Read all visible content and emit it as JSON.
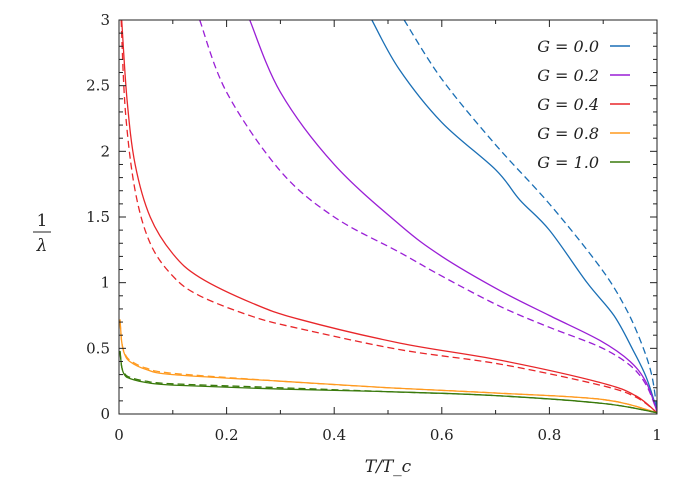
{
  "chart_data": {
    "type": "line",
    "xlabel": "T/T_c",
    "ylabel_numerator": "1",
    "ylabel_denominator": "λ",
    "xlim": [
      0,
      1
    ],
    "ylim": [
      0,
      3
    ],
    "xticks": [
      "0",
      "0.2",
      "0.4",
      "0.6",
      "0.8",
      "1"
    ],
    "yticks": [
      "0",
      "0.5",
      "1",
      "1.5",
      "2",
      "2.5",
      "3"
    ],
    "grid": false,
    "legend_position": "top-right",
    "series": [
      {
        "name": "G = 0.0",
        "color": "#1a6fb5",
        "style": "solid",
        "x": [
          0.47,
          0.52,
          0.6,
          0.7,
          0.745,
          0.8,
          0.87,
          0.92,
          0.955,
          0.98,
          1.0
        ],
        "y": [
          3.0,
          2.63,
          2.22,
          1.86,
          1.63,
          1.4,
          1.0,
          0.75,
          0.49,
          0.28,
          0.03
        ]
      },
      {
        "name": "",
        "color": "#1a6fb5",
        "style": "dashed",
        "x": [
          0.53,
          0.6,
          0.7,
          0.8,
          0.894,
          0.94,
          0.97,
          0.99,
          1.0
        ],
        "y": [
          3.0,
          2.55,
          2.05,
          1.6,
          1.12,
          0.82,
          0.55,
          0.3,
          0.03
        ]
      },
      {
        "name": "G = 0.2",
        "color": "#9a1fd6",
        "style": "solid",
        "x": [
          0.243,
          0.3,
          0.4,
          0.522,
          0.6,
          0.708,
          0.8,
          0.894,
          0.95,
          0.98,
          1.0
        ],
        "y": [
          3.0,
          2.45,
          1.9,
          1.44,
          1.2,
          0.94,
          0.75,
          0.56,
          0.4,
          0.24,
          0.02
        ]
      },
      {
        "name": "",
        "color": "#9a1fd6",
        "style": "dashed",
        "x": [
          0.15,
          0.2,
          0.3,
          0.4,
          0.522,
          0.6,
          0.708,
          0.8,
          0.894,
          0.95,
          0.98,
          1.0
        ],
        "y": [
          3.0,
          2.45,
          1.85,
          1.5,
          1.23,
          1.05,
          0.82,
          0.66,
          0.51,
          0.37,
          0.22,
          0.02
        ]
      },
      {
        "name": "G = 0.4",
        "color": "#e8262a",
        "style": "solid",
        "x": [
          0.005,
          0.015,
          0.03,
          0.058,
          0.1,
          0.15,
          0.25,
          0.336,
          0.522,
          0.708,
          0.894,
          0.96,
          1.0
        ],
        "y": [
          3.0,
          2.39,
          1.9,
          1.5,
          1.22,
          1.04,
          0.84,
          0.72,
          0.54,
          0.41,
          0.24,
          0.14,
          0.01
        ]
      },
      {
        "name": "",
        "color": "#e8262a",
        "style": "dashed",
        "x": [
          0.004,
          0.012,
          0.03,
          0.058,
          0.1,
          0.15,
          0.25,
          0.336,
          0.522,
          0.708,
          0.894,
          0.96,
          1.0
        ],
        "y": [
          3.0,
          2.3,
          1.7,
          1.3,
          1.05,
          0.9,
          0.74,
          0.65,
          0.49,
          0.38,
          0.22,
          0.13,
          0.01
        ]
      },
      {
        "name": "G = 0.8",
        "color": "#ff9a1f",
        "style": "solid",
        "x": [
          0.002,
          0.005,
          0.01,
          0.02,
          0.05,
          0.1,
          0.3,
          0.5,
          0.7,
          0.9,
          1.0
        ],
        "y": [
          0.72,
          0.55,
          0.46,
          0.4,
          0.34,
          0.3,
          0.25,
          0.2,
          0.16,
          0.11,
          0.01
        ]
      },
      {
        "name": "",
        "color": "#ff9a1f",
        "style": "dashed",
        "x": [
          0.002,
          0.005,
          0.01,
          0.02,
          0.05,
          0.1,
          0.3,
          0.5,
          0.7,
          0.9,
          1.0
        ],
        "y": [
          0.7,
          0.55,
          0.47,
          0.41,
          0.35,
          0.31,
          0.25,
          0.2,
          0.16,
          0.11,
          0.01
        ]
      },
      {
        "name": "G = 1.0",
        "color": "#3a7a0c",
        "style": "solid",
        "x": [
          0.002,
          0.005,
          0.01,
          0.02,
          0.05,
          0.1,
          0.3,
          0.5,
          0.7,
          0.9,
          1.0
        ],
        "y": [
          0.48,
          0.36,
          0.3,
          0.27,
          0.24,
          0.22,
          0.19,
          0.17,
          0.14,
          0.08,
          0.01
        ]
      },
      {
        "name": "",
        "color": "#3a7a0c",
        "style": "dashed",
        "x": [
          0.002,
          0.005,
          0.01,
          0.02,
          0.05,
          0.1,
          0.3,
          0.5,
          0.7,
          0.9,
          1.0
        ],
        "y": [
          0.47,
          0.36,
          0.31,
          0.28,
          0.25,
          0.23,
          0.2,
          0.17,
          0.14,
          0.08,
          0.01
        ]
      }
    ]
  }
}
